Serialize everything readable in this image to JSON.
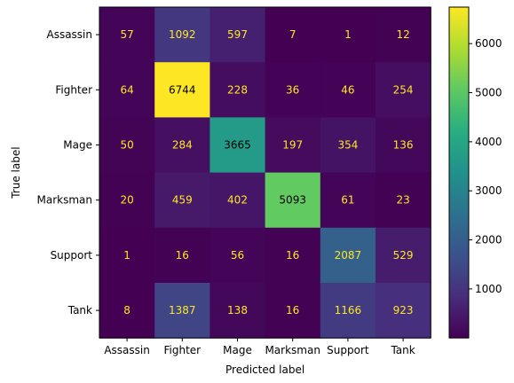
{
  "chart_data": {
    "type": "heatmap",
    "title": "",
    "xlabel": "Predicted label",
    "ylabel": "True label",
    "x_categories": [
      "Assassin",
      "Fighter",
      "Mage",
      "Marksman",
      "Support",
      "Tank"
    ],
    "y_categories": [
      "Assassin",
      "Fighter",
      "Mage",
      "Marksman",
      "Support",
      "Tank"
    ],
    "values": [
      [
        57,
        1092,
        597,
        7,
        1,
        12
      ],
      [
        64,
        6744,
        228,
        36,
        46,
        254
      ],
      [
        50,
        284,
        3665,
        197,
        354,
        136
      ],
      [
        20,
        459,
        402,
        5093,
        61,
        23
      ],
      [
        1,
        16,
        56,
        16,
        2087,
        529
      ],
      [
        8,
        1387,
        138,
        16,
        1166,
        923
      ]
    ],
    "colormap": "viridis",
    "colorbar": {
      "min": 1,
      "max": 6744,
      "ticks": [
        1000,
        2000,
        3000,
        4000,
        5000,
        6000
      ]
    },
    "text_color_dark_cells": "#fde725",
    "text_color_light_cells": "#000000",
    "grid": false
  }
}
